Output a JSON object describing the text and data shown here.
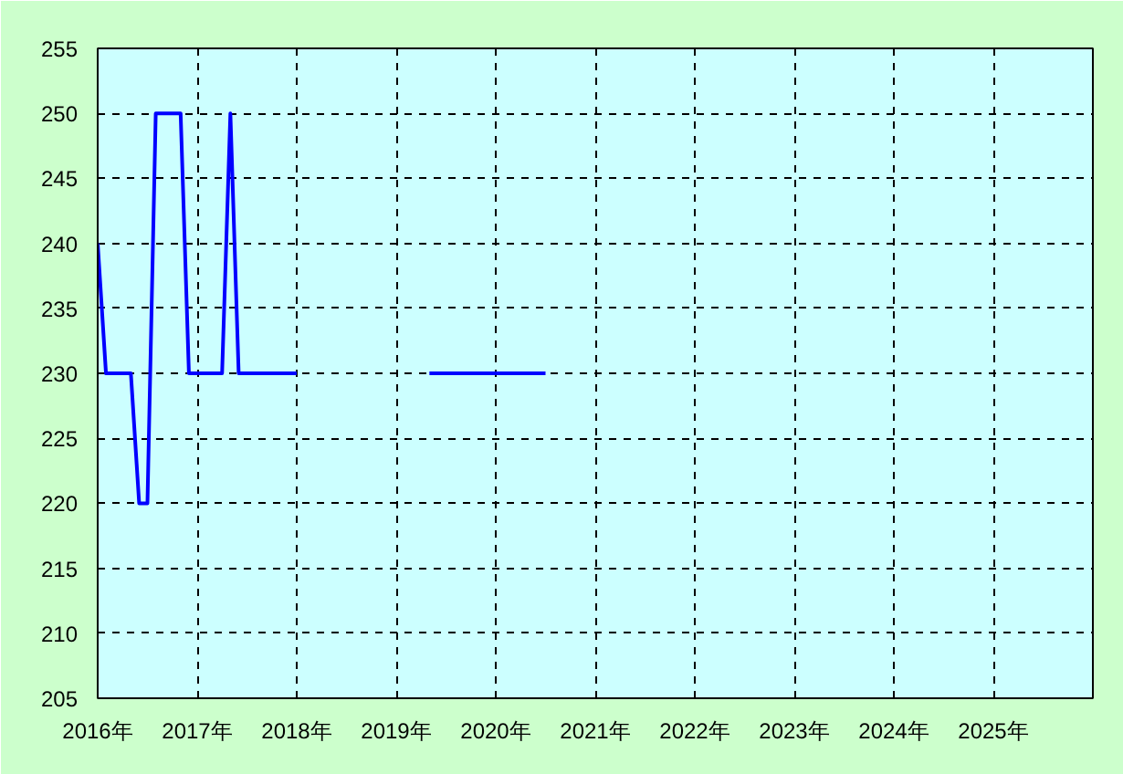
{
  "chart_data": {
    "type": "line",
    "x": [
      "2016-01",
      "2016-02",
      "2016-03",
      "2016-04",
      "2016-05",
      "2016-06",
      "2016-07",
      "2016-08",
      "2016-09",
      "2016-10",
      "2016-11",
      "2016-12",
      "2017-01",
      "2017-02",
      "2017-03",
      "2017-04",
      "2017-05",
      "2017-06",
      "2017-07",
      "2017-08",
      "2017-09",
      "2017-10",
      "2017-11",
      "2017-12",
      "2018-01",
      "2018-09",
      "2019-05",
      "2020-07"
    ],
    "series": [
      {
        "color": "#0000ff",
        "values": [
          240,
          230,
          230,
          230,
          230,
          220,
          220,
          250,
          250,
          250,
          250,
          230,
          230,
          230,
          230,
          230,
          250,
          230,
          230,
          230,
          230,
          230,
          230,
          230,
          230,
          null,
          230,
          230
        ]
      }
    ],
    "xlim": [
      "2016",
      "2026"
    ],
    "xticks": [
      {
        "value": "2016",
        "label": "2016年"
      },
      {
        "value": "2017",
        "label": "2017年"
      },
      {
        "value": "2018",
        "label": "2018年"
      },
      {
        "value": "2019",
        "label": "2019年"
      },
      {
        "value": "2020",
        "label": "2020年"
      },
      {
        "value": "2021",
        "label": "2021年"
      },
      {
        "value": "2022",
        "label": "2022年"
      },
      {
        "value": "2023",
        "label": "2023年"
      },
      {
        "value": "2024",
        "label": "2024年"
      },
      {
        "value": "2025",
        "label": "2025年"
      }
    ],
    "ylim": [
      205,
      255
    ],
    "yticks": [
      205,
      210,
      215,
      220,
      225,
      230,
      235,
      240,
      245,
      250,
      255
    ],
    "grid": true,
    "line_style": "solid"
  }
}
